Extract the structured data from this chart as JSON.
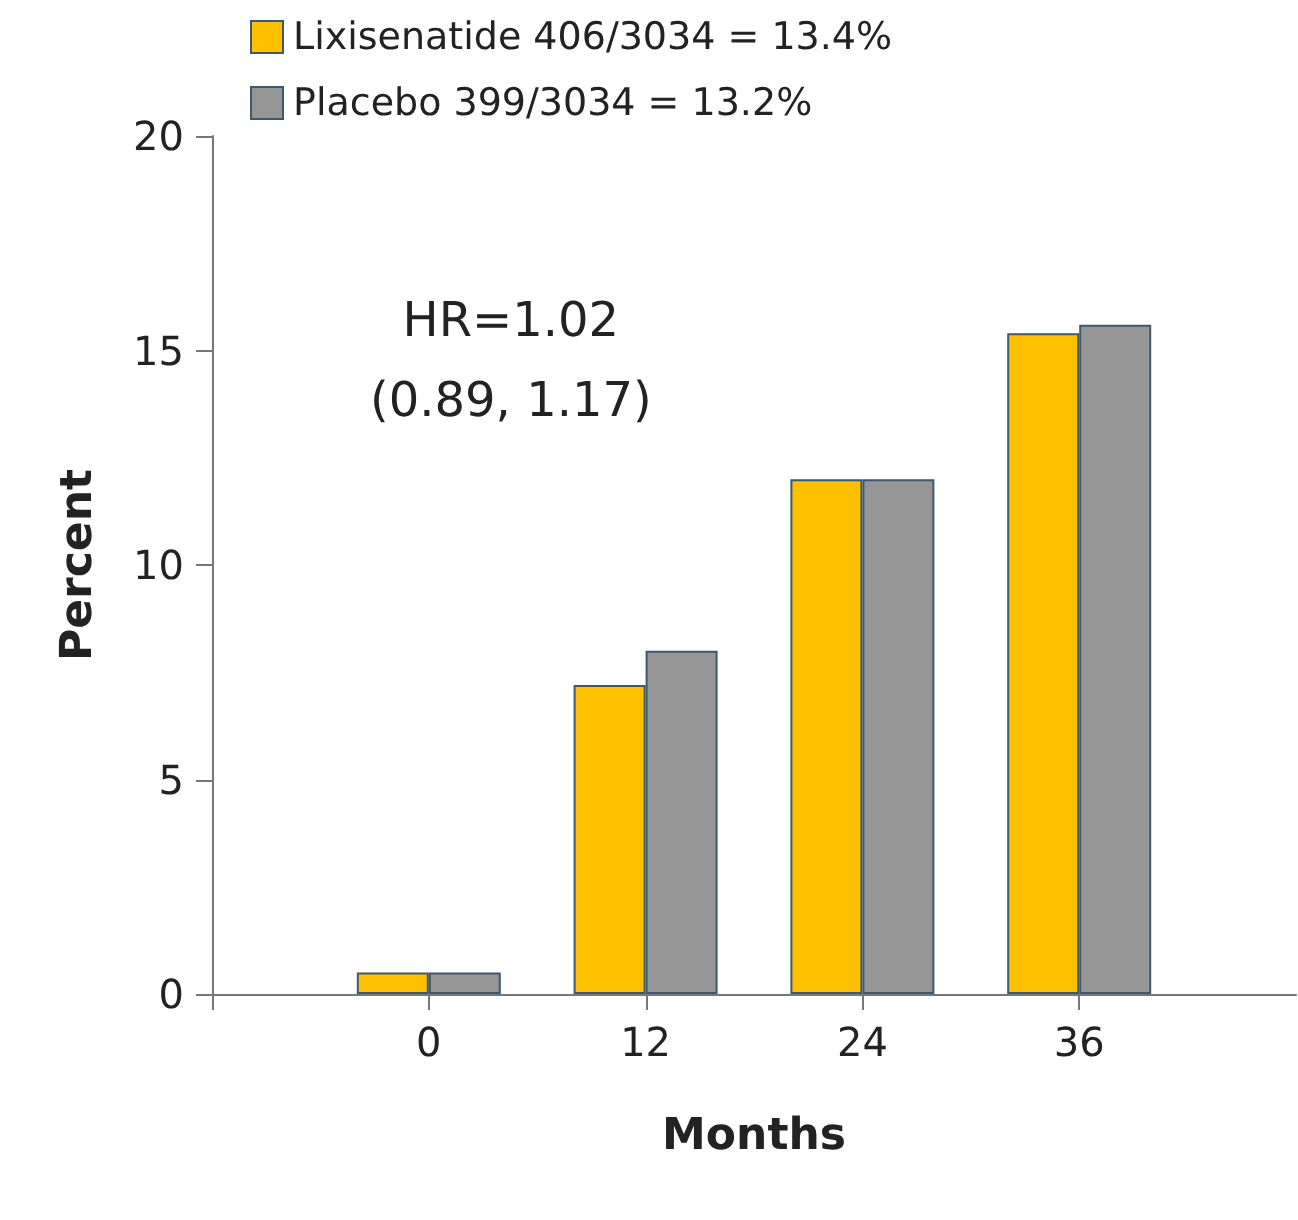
{
  "chart_data": {
    "type": "bar",
    "xlabel": "Months",
    "ylabel": "Percent",
    "x": [
      0,
      12,
      24,
      36
    ],
    "series": [
      {
        "name": "Lixisenatide 406/3034 = 13.4%",
        "color": "#ffc000",
        "values": [
          0.5,
          7.2,
          12.0,
          15.4
        ]
      },
      {
        "name": "Placebo 399/3034 = 13.2%",
        "color": "#969696",
        "values": [
          0.5,
          8.0,
          12.0,
          15.6
        ]
      }
    ],
    "xlim": [
      -12,
      48
    ],
    "xticks": [
      {
        "value": -12,
        "label": null
      },
      0,
      12,
      24,
      36
    ],
    "ylim": [
      0,
      20
    ],
    "yticks": [
      0,
      5,
      10,
      15,
      20
    ],
    "annotations": [
      "HR=1.02\n(0.89, 1.17)"
    ],
    "grid": false,
    "legend": "top left"
  }
}
